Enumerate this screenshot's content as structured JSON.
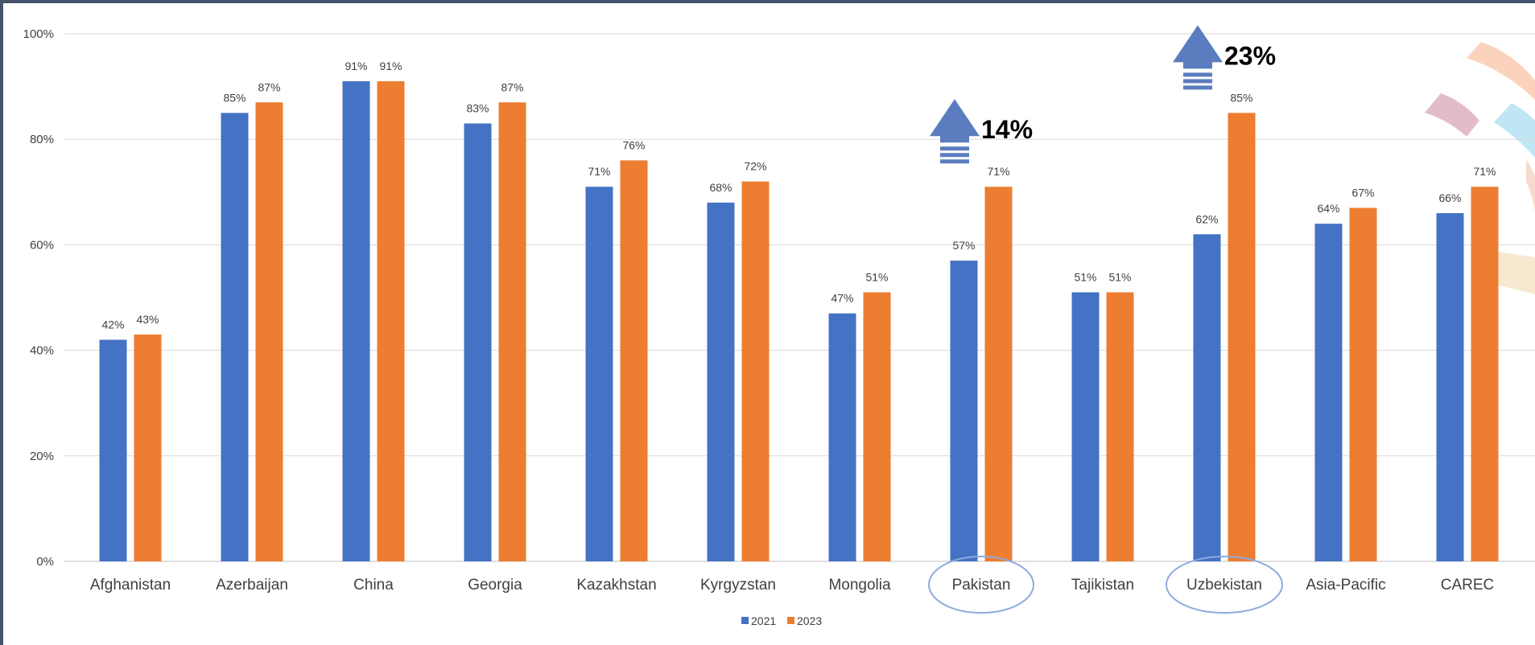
{
  "chart_data": {
    "type": "bar",
    "title": "",
    "xlabel": "",
    "ylabel": "",
    "ylim": [
      0,
      100
    ],
    "yticks": [
      "0%",
      "20%",
      "40%",
      "60%",
      "80%",
      "100%"
    ],
    "grid": true,
    "legend_position": "bottom",
    "categories": [
      "Afghanistan",
      "Azerbaijan",
      "China",
      "Georgia",
      "Kazakhstan",
      "Kyrgyzstan",
      "Mongolia",
      "Pakistan",
      "Tajikistan",
      "Uzbekistan",
      "Asia-Pacific",
      "CAREC"
    ],
    "series": [
      {
        "name": "2021",
        "color": "#4472c4",
        "values": [
          42,
          85,
          91,
          83,
          71,
          68,
          47,
          57,
          51,
          62,
          64,
          66
        ],
        "labels": [
          "42%",
          "85%",
          "91%",
          "83%",
          "71%",
          "68%",
          "47%",
          "57%",
          "51%",
          "62%",
          "64%",
          "66%"
        ]
      },
      {
        "name": "2023",
        "color": "#ed7d31",
        "values": [
          43,
          87,
          91,
          87,
          76,
          72,
          51,
          71,
          51,
          85,
          67,
          71
        ],
        "labels": [
          "43%",
          "87%",
          "91%",
          "87%",
          "76%",
          "72%",
          "51%",
          "71%",
          "51%",
          "85%",
          "67%",
          "71%"
        ]
      }
    ],
    "highlighted_categories": [
      "Pakistan",
      "Uzbekistan"
    ],
    "annotations": [
      {
        "text": "14%",
        "category": "Pakistan",
        "icon": "up-arrow-icon",
        "color": "#5b7dbf"
      },
      {
        "text": "23%",
        "category": "Uzbekistan",
        "icon": "up-arrow-icon",
        "color": "#5b7dbf"
      }
    ]
  },
  "decoration": {
    "icon": "logo-arcs-icon",
    "colors": [
      "#f9c4a6",
      "#d8a7b6",
      "#a9ddf0",
      "#f2cfb9",
      "#f3e1c0"
    ]
  }
}
